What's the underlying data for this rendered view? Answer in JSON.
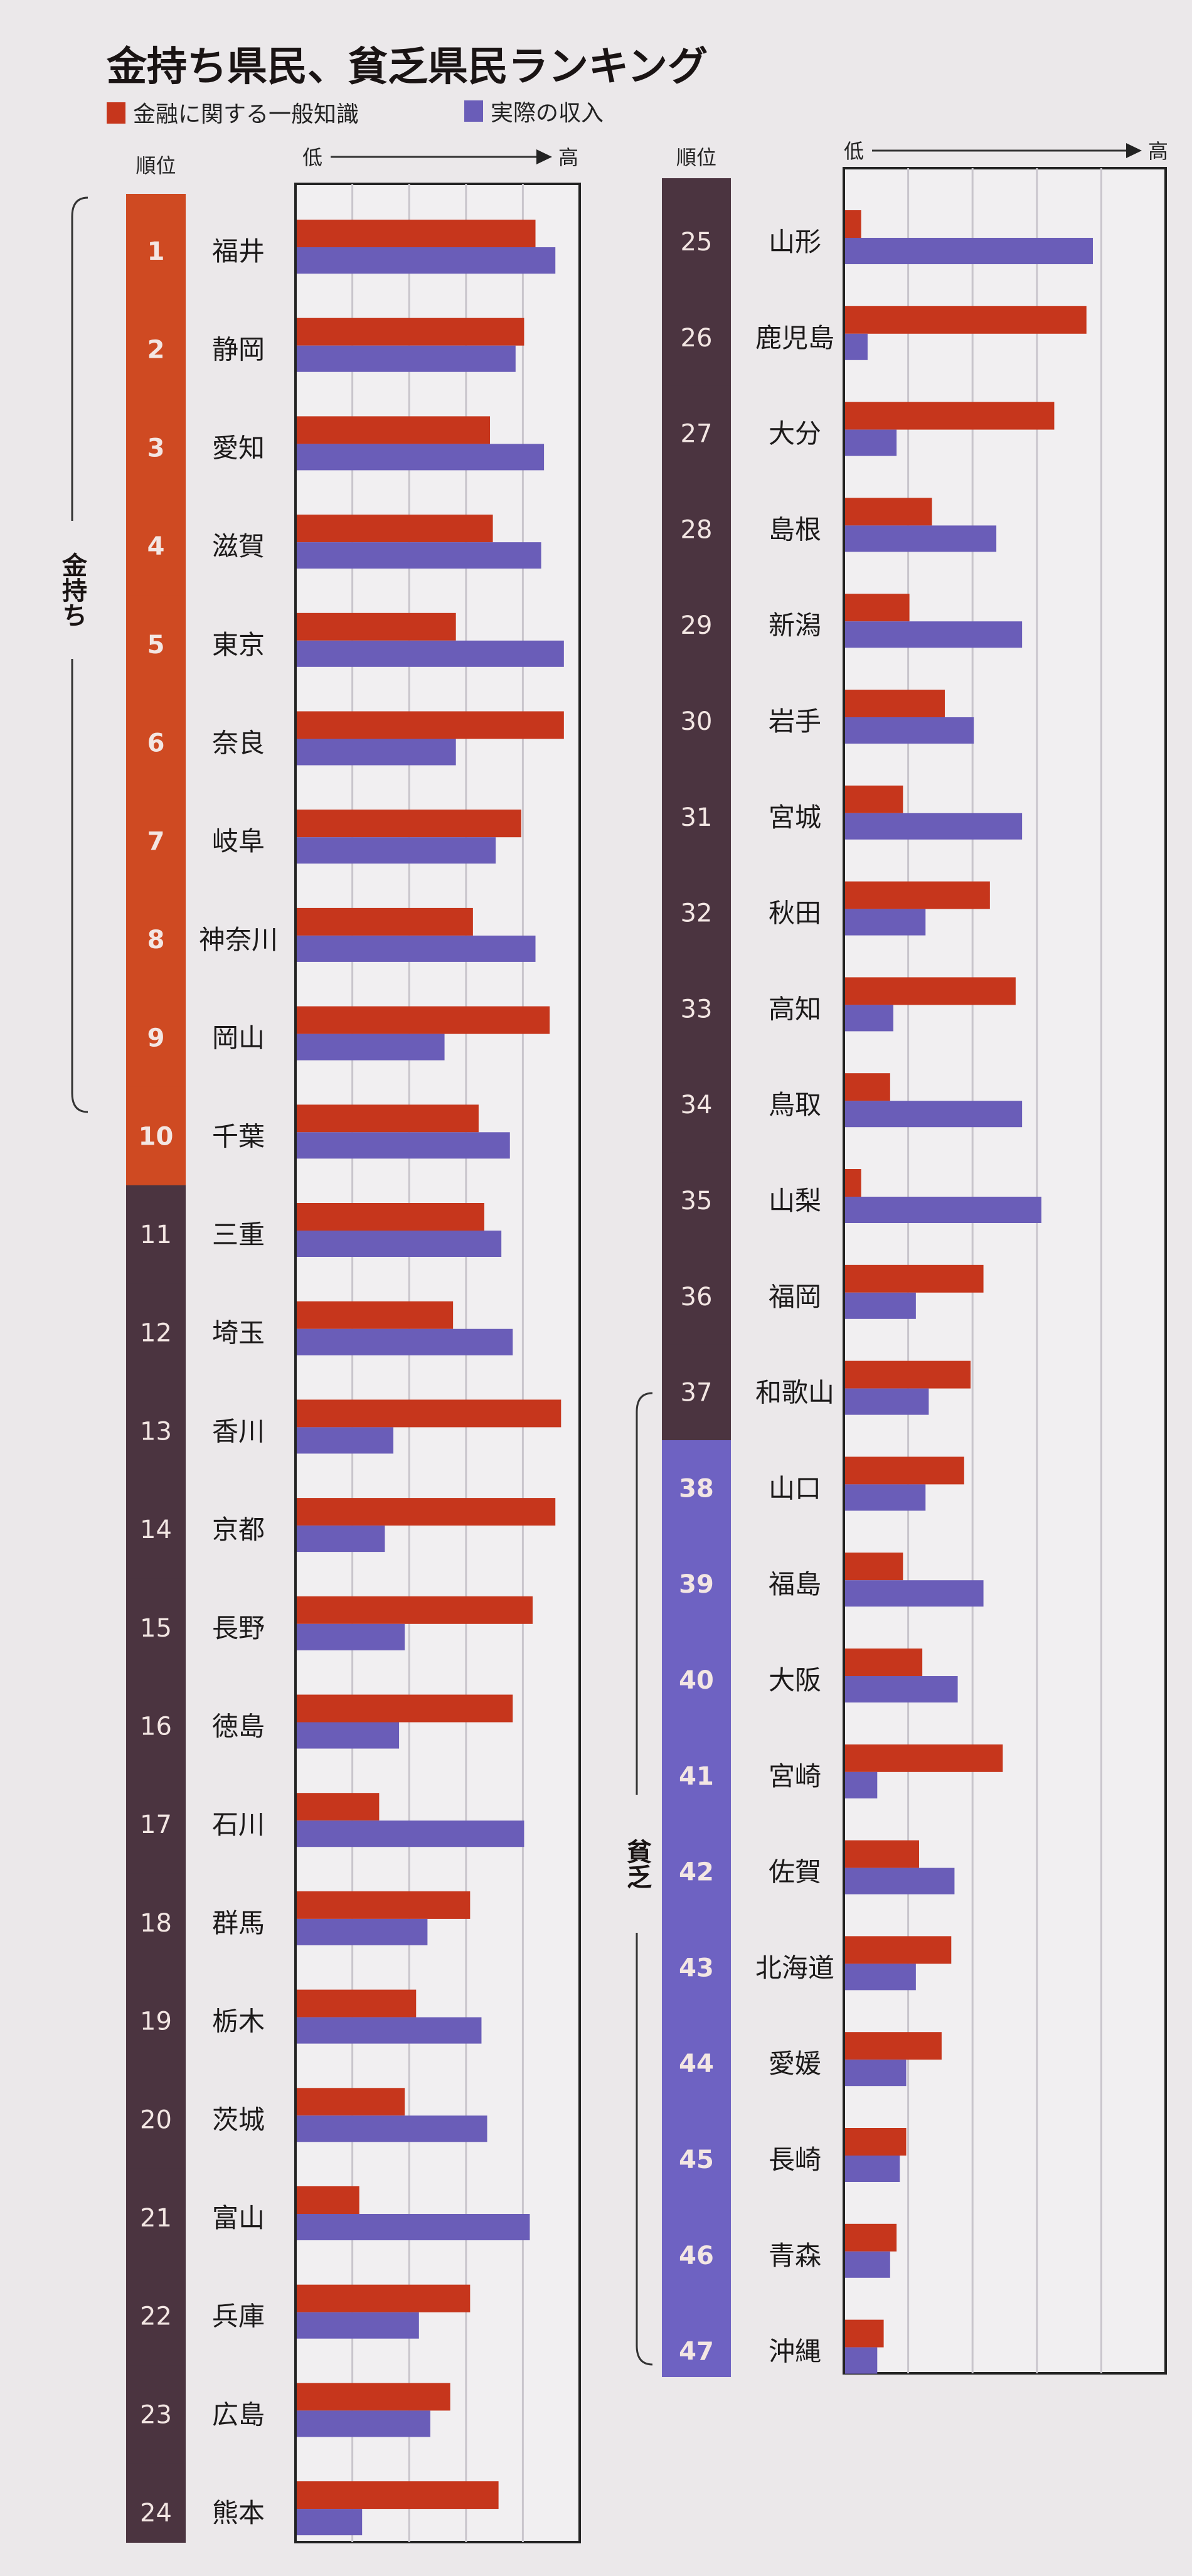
{
  "chart_data": {
    "type": "bar",
    "title": "金持ち県民、貧乏県民ランキング",
    "orientation": "horizontal",
    "series": [
      {
        "name": "金融に関する一般知識",
        "color": "#c6361c",
        "values": [
          84,
          80,
          68,
          69,
          56,
          94,
          79,
          62,
          89,
          64,
          66,
          55,
          93,
          91,
          83,
          76,
          29,
          61,
          42,
          38,
          22,
          61,
          54,
          71,
          5,
          75,
          65,
          27,
          20,
          31,
          18,
          45,
          53,
          14,
          5,
          43,
          39,
          37,
          18,
          24,
          49,
          23,
          33,
          30,
          19,
          16,
          12
        ]
      },
      {
        "name": "実際の収入",
        "color": "#6a5db8",
        "values": [
          91,
          77,
          87,
          86,
          94,
          56,
          70,
          84,
          52,
          75,
          72,
          76,
          34,
          31,
          38,
          36,
          80,
          46,
          65,
          67,
          82,
          43,
          47,
          23,
          77,
          7,
          16,
          47,
          55,
          40,
          55,
          25,
          15,
          55,
          61,
          22,
          26,
          25,
          43,
          35,
          10,
          34,
          22,
          19,
          17,
          14,
          10
        ]
      }
    ],
    "categories": [
      "福井",
      "静岡",
      "愛知",
      "滋賀",
      "東京",
      "奈良",
      "岐阜",
      "神奈川",
      "岡山",
      "千葉",
      "三重",
      "埼玉",
      "香川",
      "京都",
      "長野",
      "徳島",
      "石川",
      "群馬",
      "栃木",
      "茨城",
      "富山",
      "兵庫",
      "広島",
      "熊本",
      "山形",
      "鹿児島",
      "大分",
      "島根",
      "新潟",
      "岩手",
      "宮城",
      "秋田",
      "高知",
      "鳥取",
      "山梨",
      "福岡",
      "和歌山",
      "山口",
      "福島",
      "大阪",
      "宮崎",
      "佐賀",
      "北海道",
      "愛媛",
      "長崎",
      "青森",
      "沖縄"
    ],
    "ranks": [
      "1",
      "2",
      "3",
      "4",
      "5",
      "6",
      "7",
      "8",
      "9",
      "10",
      "11",
      "12",
      "13",
      "14",
      "15",
      "16",
      "17",
      "18",
      "19",
      "20",
      "21",
      "22",
      "23",
      "24",
      "25",
      "26",
      "27",
      "28",
      "29",
      "30",
      "31",
      "32",
      "33",
      "34",
      "35",
      "36",
      "37",
      "38",
      "39",
      "40",
      "41",
      "42",
      "43",
      "44",
      "45",
      "46",
      "47"
    ],
    "rank_header": "順位",
    "axis_low": "低",
    "axis_high": "高",
    "xlim": [
      0,
      100
    ],
    "grid": true,
    "legend": "top-left",
    "groups": [
      {
        "label": "金持ち",
        "from_rank": 1,
        "to_rank": 10,
        "color": "#cf4a22"
      },
      {
        "label": "",
        "from_rank": 11,
        "to_rank": 37,
        "color": "#4b3440"
      },
      {
        "label": "貧乏",
        "from_rank": 38,
        "to_rank": 47,
        "color": "#6e62c2"
      }
    ]
  }
}
